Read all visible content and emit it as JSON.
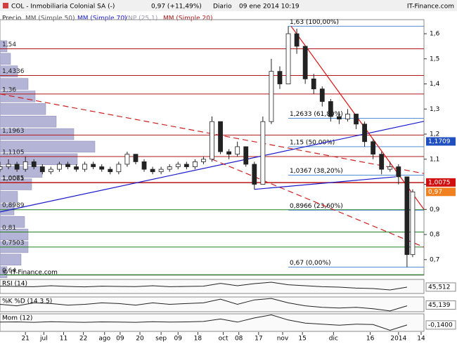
{
  "header": {
    "title": "COL - Inmobiliaria Colonial SA (-)",
    "price": "0,97 (+11,49%)",
    "period": "Diario",
    "date": "09 ene 2014 10:19",
    "brand": "IT-Finance.com"
  },
  "legend": [
    "Precio",
    "MM (Simple 50)",
    "MM (Simple 70)",
    "VNP (25,1)",
    "MM (Simple 20)"
  ],
  "watermark": "© IT-Finance.com",
  "chart_data": {
    "type": "candlestick",
    "xlim": [
      0,
      150
    ],
    "ylim": [
      0.638,
      1.656
    ],
    "yticks": [
      {
        "value": 0.7,
        "label": "0,7"
      },
      {
        "value": 0.8,
        "label": "0,8"
      },
      {
        "value": 0.9,
        "label": "0,9"
      },
      {
        "value": 1,
        "label": "1"
      },
      {
        "value": 1.1,
        "label": "1,1"
      },
      {
        "value": 1.2,
        "label": "1,2"
      },
      {
        "value": 1.3,
        "label": "1,3"
      },
      {
        "value": 1.4,
        "label": "1,4"
      },
      {
        "value": 1.5,
        "label": "1,5"
      },
      {
        "value": 1.6,
        "label": "1,6"
      }
    ],
    "xticks": [
      {
        "value": 9,
        "label": "21"
      },
      {
        "value": 15.5,
        "label": "jul"
      },
      {
        "value": 22.5,
        "label": "11"
      },
      {
        "value": 29.5,
        "label": "22"
      },
      {
        "value": 37,
        "label": "ago"
      },
      {
        "value": 42.5,
        "label": "09"
      },
      {
        "value": 49.5,
        "label": "20"
      },
      {
        "value": 57,
        "label": "sep"
      },
      {
        "value": 63,
        "label": "09"
      },
      {
        "value": 70,
        "label": "18"
      },
      {
        "value": 79,
        "label": "oct"
      },
      {
        "value": 84.5,
        "label": "08"
      },
      {
        "value": 91.5,
        "label": "17"
      },
      {
        "value": 100,
        "label": "nov"
      },
      {
        "value": 107,
        "label": "15"
      },
      {
        "value": 118,
        "label": "dic"
      },
      {
        "value": 131,
        "label": "16"
      },
      {
        "value": 141,
        "label": "2014"
      },
      {
        "value": 149,
        "label": "14"
      }
    ],
    "x": [
      0,
      3,
      6,
      9,
      12,
      15,
      18,
      21,
      24,
      27,
      30,
      33,
      36,
      39,
      42,
      45,
      48,
      51,
      54,
      57,
      60,
      63,
      66,
      69,
      72,
      75,
      78,
      81,
      84,
      87,
      90,
      93,
      96,
      99,
      102,
      105,
      108,
      111,
      114,
      117,
      120,
      123,
      126,
      129,
      132,
      135,
      138,
      141,
      144,
      146
    ],
    "ohlc": [
      [
        1.06,
        1.09,
        1.05,
        1.07
      ],
      [
        1.07,
        1.1,
        1.06,
        1.08
      ],
      [
        1.08,
        1.09,
        1.05,
        1.06
      ],
      [
        1.06,
        1.11,
        1.05,
        1.09
      ],
      [
        1.09,
        1.1,
        1.06,
        1.07
      ],
      [
        1.07,
        1.08,
        1.04,
        1.05
      ],
      [
        1.05,
        1.07,
        1.04,
        1.06
      ],
      [
        1.06,
        1.09,
        1.05,
        1.08
      ],
      [
        1.08,
        1.09,
        1.06,
        1.07
      ],
      [
        1.07,
        1.08,
        1.05,
        1.06
      ],
      [
        1.06,
        1.09,
        1.05,
        1.08
      ],
      [
        1.08,
        1.09,
        1.06,
        1.07
      ],
      [
        1.07,
        1.08,
        1.05,
        1.06
      ],
      [
        1.06,
        1.07,
        1.04,
        1.05
      ],
      [
        1.05,
        1.09,
        1.04,
        1.08
      ],
      [
        1.08,
        1.13,
        1.07,
        1.12
      ],
      [
        1.12,
        1.12,
        1.08,
        1.09
      ],
      [
        1.09,
        1.1,
        1.05,
        1.06
      ],
      [
        1.06,
        1.07,
        1.04,
        1.05
      ],
      [
        1.05,
        1.07,
        1.04,
        1.06
      ],
      [
        1.06,
        1.08,
        1.05,
        1.07
      ],
      [
        1.07,
        1.09,
        1.06,
        1.08
      ],
      [
        1.08,
        1.09,
        1.06,
        1.07
      ],
      [
        1.07,
        1.1,
        1.06,
        1.09
      ],
      [
        1.09,
        1.11,
        1.08,
        1.1
      ],
      [
        1.1,
        1.27,
        1.09,
        1.25
      ],
      [
        1.25,
        1.25,
        1.12,
        1.13
      ],
      [
        1.13,
        1.14,
        1.1,
        1.12
      ],
      [
        1.12,
        1.17,
        1.11,
        1.15
      ],
      [
        1.15,
        1.15,
        1.07,
        1.08
      ],
      [
        1.08,
        1.09,
        0.98,
        1
      ],
      [
        1,
        1.27,
        1,
        1.25
      ],
      [
        1.25,
        1.5,
        1.24,
        1.45
      ],
      [
        1.45,
        1.47,
        1.38,
        1.4
      ],
      [
        1.4,
        1.63,
        1.4,
        1.6
      ],
      [
        1.6,
        1.62,
        1.52,
        1.55
      ],
      [
        1.55,
        1.55,
        1.4,
        1.42
      ],
      [
        1.42,
        1.44,
        1.36,
        1.38
      ],
      [
        1.38,
        1.39,
        1.31,
        1.33
      ],
      [
        1.33,
        1.34,
        1.25,
        1.27
      ],
      [
        1.27,
        1.29,
        1.24,
        1.26
      ],
      [
        1.26,
        1.3,
        1.25,
        1.28
      ],
      [
        1.28,
        1.28,
        1.22,
        1.24
      ],
      [
        1.24,
        1.25,
        1.15,
        1.17
      ],
      [
        1.17,
        1.18,
        1.1,
        1.12
      ],
      [
        1.12,
        1.13,
        1.04,
        1.06
      ],
      [
        1.06,
        1.09,
        1.05,
        1.07
      ],
      [
        1.07,
        1.08,
        1,
        1.03
      ],
      [
        1.03,
        1.03,
        0.67,
        0.72
      ],
      [
        0.72,
        0.98,
        0.71,
        0.97
      ]
    ],
    "levels": [
      {
        "value": 1.54,
        "label": "1,54",
        "color": "#b01818"
      },
      {
        "value": 1.4336,
        "label": "1,4336",
        "color": "#b01818"
      },
      {
        "value": 1.36,
        "label": "1,36",
        "color": "#b01818"
      },
      {
        "value": 1.1963,
        "label": "1,1963",
        "color": "#b01818"
      },
      {
        "value": 1.1105,
        "label": "1,1105",
        "color": "#b01818"
      },
      {
        "value": 1.0075,
        "label": "1,0075",
        "color": "#d01010"
      },
      {
        "value": 1.0061,
        "label": "1,0061",
        "color": "#b01818"
      },
      {
        "value": 0.8989,
        "label": "0,8989",
        "color": "#208020"
      },
      {
        "value": 0.81,
        "label": "0,81",
        "color": "#208020"
      },
      {
        "value": 0.7503,
        "label": "0,7503",
        "color": "#208020"
      },
      {
        "value": 0.64,
        "label": "0,64",
        "color": "#208020"
      }
    ],
    "fibonacci": {
      "x": 102,
      "color": "#3a7fd0",
      "levels": [
        {
          "value": 1.63,
          "label": "1,63 (100,00%)"
        },
        {
          "value": 1.2633,
          "label": "1,2633 (61,80%)"
        },
        {
          "value": 1.15,
          "label": "1,15 (50,00%)"
        },
        {
          "value": 1.0367,
          "label": "1,0367 (38,20%)"
        },
        {
          "value": 0.8966,
          "label": "0,8966 (23,60%)"
        },
        {
          "value": 0.67,
          "label": "0,67 (0,00%)"
        }
      ]
    },
    "trendlines": [
      {
        "color": "#1a1acc",
        "dash": false,
        "x": [
          0,
          150
        ],
        "y": [
          0.89,
          1.251
        ]
      },
      {
        "color": "#cc2020",
        "dash": true,
        "x": [
          0,
          150
        ],
        "y": [
          1.36,
          1.043
        ]
      },
      {
        "color": "#dd1010",
        "dash": false,
        "x": [
          103,
          150
        ],
        "y": [
          1.63,
          0.9
        ]
      },
      {
        "color": "#cc2020",
        "dash": true,
        "x": [
          75,
          150
        ],
        "y": [
          1.1,
          0.75
        ]
      },
      {
        "color": "#1a1acc",
        "dash": false,
        "x": [
          90,
          140
        ],
        "y": [
          0.98,
          1.03
        ]
      }
    ],
    "volume_profile": {
      "color": "#b4b4d6",
      "price": [
        0.65,
        0.7,
        0.75,
        0.8,
        0.85,
        0.9,
        0.95,
        1.0,
        1.05,
        1.1,
        1.15,
        1.2,
        1.25,
        1.3,
        1.35,
        1.4,
        1.45,
        1.5,
        1.55
      ],
      "volume": [
        10,
        30,
        40,
        40,
        35,
        20,
        25,
        45,
        60,
        110,
        135,
        105,
        80,
        65,
        50,
        40,
        25,
        15,
        10
      ]
    },
    "price_tags": [
      {
        "value": 1.1709,
        "label": "1,1709",
        "color": "#2050c0"
      },
      {
        "value": 1.0075,
        "label": "1,0075",
        "color": "#d01010"
      },
      {
        "value": 0.97,
        "label": "0,97",
        "color": "#f08020"
      }
    ],
    "indicators": [
      {
        "name": "RSI (14)",
        "color": "#222222",
        "ylim": [
          0,
          100
        ],
        "x": [
          0,
          6,
          12,
          18,
          24,
          30,
          36,
          42,
          48,
          54,
          60,
          66,
          72,
          78,
          84,
          90,
          96,
          102,
          108,
          114,
          120,
          126,
          132,
          138,
          144
        ],
        "values": [
          52,
          50,
          48,
          55,
          50,
          47,
          52,
          50,
          49,
          55,
          48,
          50,
          52,
          72,
          55,
          70,
          80,
          62,
          55,
          48,
          45,
          38,
          35,
          25,
          45
        ],
        "tag": {
          "value": 45.512,
          "label": "45,512"
        }
      },
      {
        "name": "%K %D (14 3 5)",
        "color": "#222222",
        "ylim": [
          0,
          100
        ],
        "x": [
          0,
          6,
          12,
          18,
          24,
          30,
          36,
          42,
          48,
          54,
          60,
          66,
          72,
          78,
          84,
          90,
          96,
          102,
          108,
          114,
          120,
          126,
          132,
          138,
          144
        ],
        "values": [
          50,
          40,
          60,
          55,
          45,
          50,
          60,
          55,
          45,
          60,
          50,
          55,
          60,
          85,
          50,
          80,
          90,
          60,
          40,
          30,
          25,
          30,
          20,
          5,
          40
        ],
        "tag": {
          "value": 45.139,
          "label": "45,139"
        }
      },
      {
        "name": "Mom (12)",
        "color": "#222222",
        "ylim": [
          -0.45,
          0.4
        ],
        "x": [
          0,
          6,
          12,
          18,
          24,
          30,
          36,
          42,
          48,
          54,
          60,
          66,
          72,
          78,
          84,
          90,
          96,
          102,
          108,
          114,
          120,
          126,
          132,
          138,
          144
        ],
        "values": [
          0,
          0.01,
          -0.01,
          0.02,
          0,
          -0.01,
          0.01,
          0,
          -0.01,
          0.02,
          0,
          0.01,
          0.03,
          0.15,
          0,
          0.2,
          0.35,
          0.1,
          -0.05,
          -0.1,
          -0.15,
          -0.1,
          -0.12,
          -0.4,
          -0.14
        ],
        "tag": {
          "value": -0.14,
          "label": "-0,1400"
        }
      }
    ]
  }
}
